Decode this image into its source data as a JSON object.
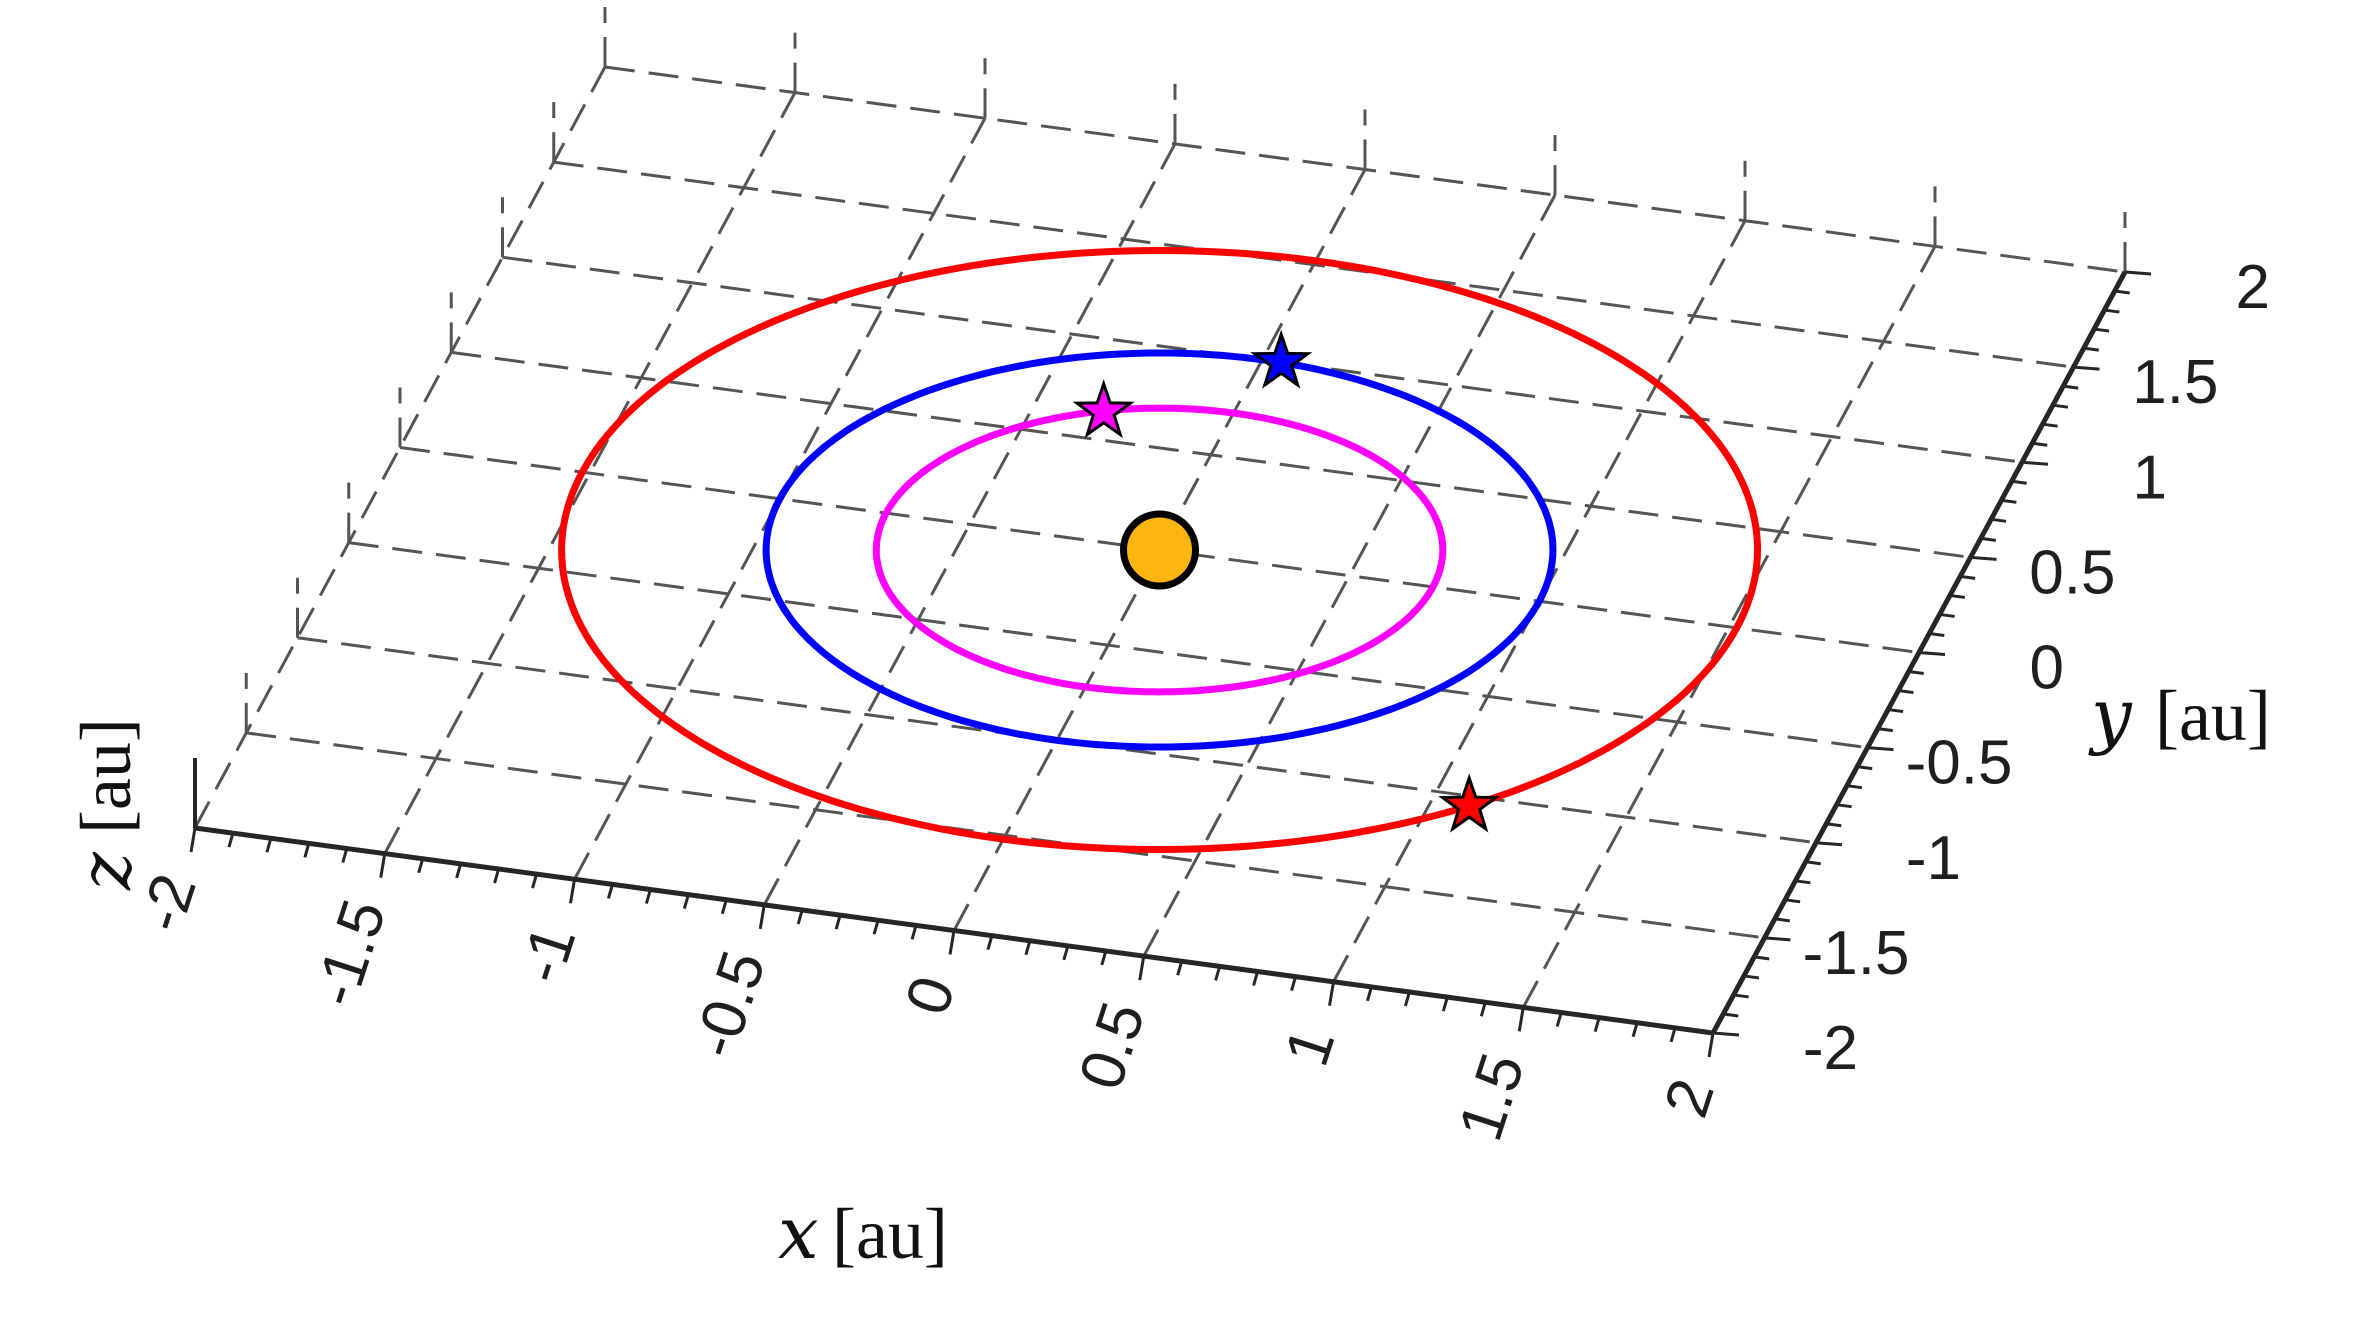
{
  "chart_data": {
    "type": "line",
    "projection": "3-D perspective axes, viewed from above",
    "xlabel": {
      "var": "x",
      "unit": "[au]"
    },
    "ylabel": {
      "var": "y",
      "unit": "[au]"
    },
    "zlabel": {
      "var": "z",
      "unit": "[au]"
    },
    "xlim": [
      -2,
      2
    ],
    "ylim": [
      -2,
      2
    ],
    "xticks": [
      -2,
      -1.5,
      -1,
      -0.5,
      0,
      0.5,
      1,
      1.5,
      2
    ],
    "yticks": [
      -2,
      -1.5,
      -1,
      -0.5,
      0,
      0.5,
      1,
      1.5,
      2
    ],
    "xtick_labels": [
      "-2",
      "-1.5",
      "-1",
      "-0.5",
      "0",
      "0.5",
      "1",
      "1.5",
      "2"
    ],
    "ytick_labels": [
      "-2",
      "-1.5",
      "-1",
      "-0.5",
      "0",
      "0.5",
      "1",
      "1.5",
      "2"
    ],
    "grid": true,
    "grid_style": "dashed",
    "sun": {
      "x": 0,
      "y": 0,
      "color": "#FDB50F"
    },
    "series": [
      {
        "color": "#FF0000",
        "orbit_radius": 1.52,
        "star": {
          "x": 1.1,
          "y": -1.05
        }
      },
      {
        "color": "#0000FF",
        "orbit_radius": 1.0,
        "star": {
          "x": 0.05,
          "y": 1.0
        }
      },
      {
        "color": "#FF00FF",
        "orbit_radius": 0.72,
        "star": {
          "x": -0.32,
          "y": 0.64
        }
      }
    ]
  }
}
